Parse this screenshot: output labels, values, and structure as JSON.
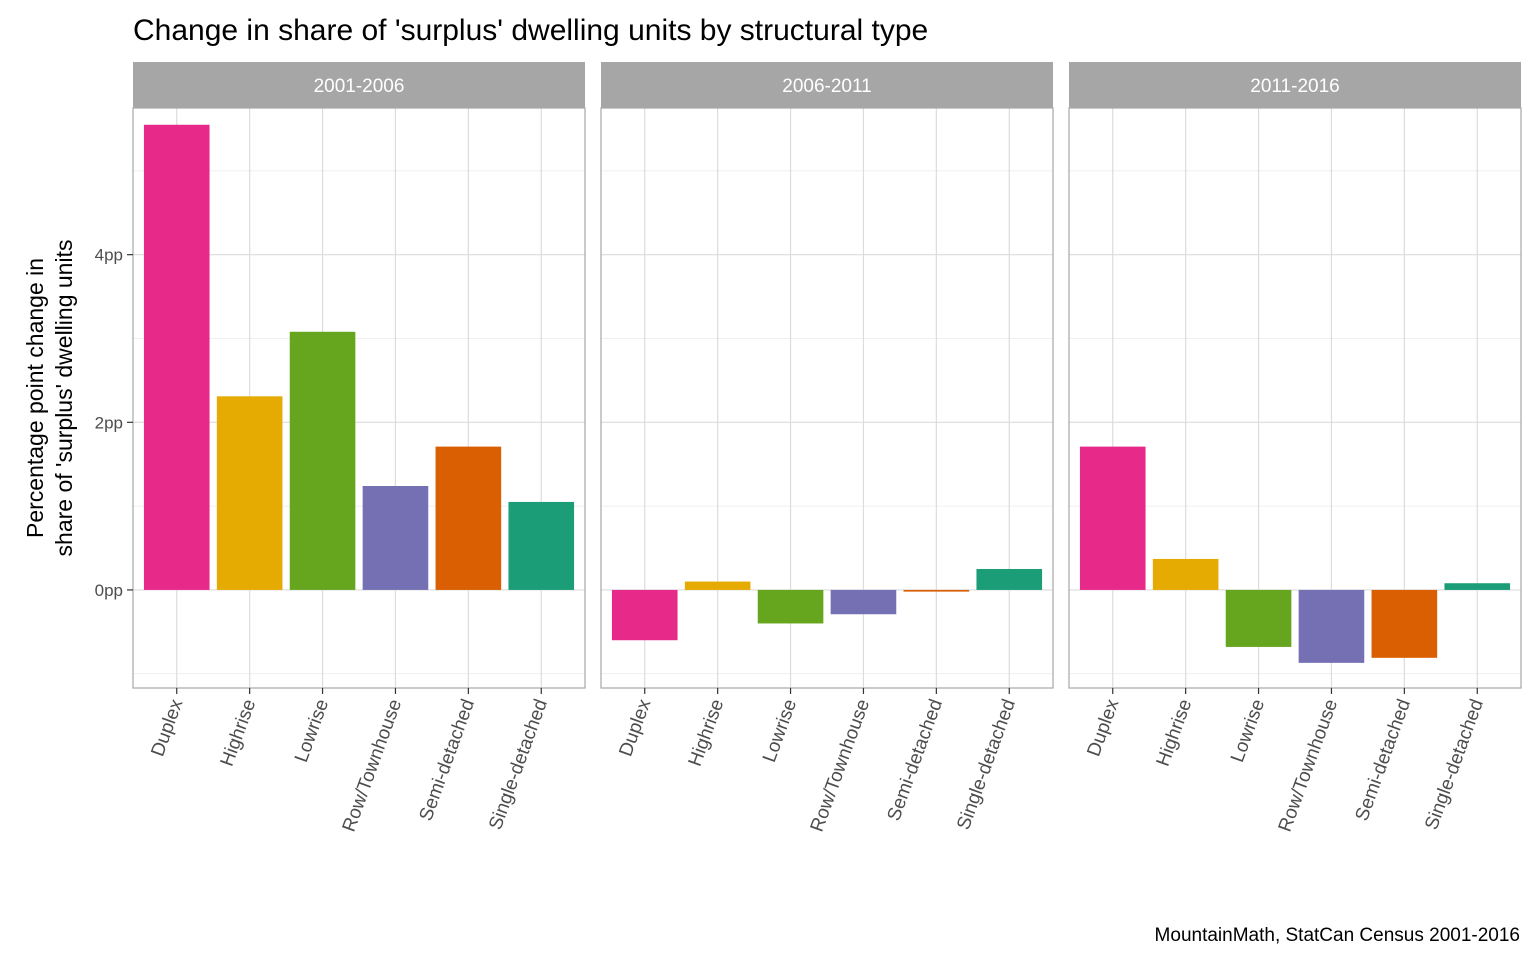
{
  "chart_data": {
    "type": "bar",
    "title": "Change in share of 'surplus' dwelling units by structural type",
    "ylabel": [
      "Percentage point change in",
      "share of 'surplus' dwelling units"
    ],
    "xlabel": "",
    "caption": "MountainMath, StatCan Census 2001-2016",
    "categories": [
      "Duplex",
      "Highrise",
      "Lowrise",
      "Row/Townhouse",
      "Semi-detached",
      "Single-detached"
    ],
    "colors": [
      "#e7298a",
      "#e6ab02",
      "#66a61e",
      "#7570b3",
      "#d95f02",
      "#1b9e77"
    ],
    "ylim": [
      -1.17,
      5.75
    ],
    "yticks": [
      0,
      2,
      4
    ],
    "ytick_labels": [
      "0pp",
      "2pp",
      "4pp"
    ],
    "grid": true,
    "legend": "none",
    "panels": [
      {
        "name": "2001-2006",
        "values": [
          5.55,
          2.31,
          3.08,
          1.24,
          1.71,
          1.05
        ]
      },
      {
        "name": "2006-2011",
        "values": [
          -0.6,
          0.1,
          -0.4,
          -0.29,
          -0.02,
          0.25
        ]
      },
      {
        "name": "2011-2016",
        "values": [
          1.71,
          0.37,
          -0.68,
          -0.87,
          -0.81,
          0.08
        ]
      }
    ]
  }
}
